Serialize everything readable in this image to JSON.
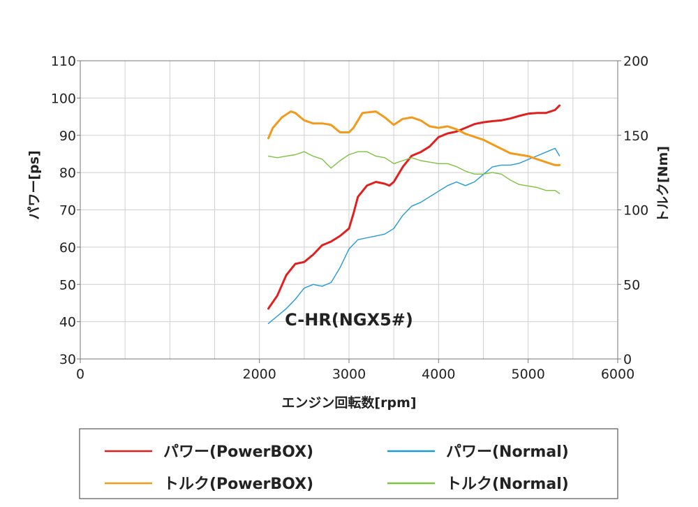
{
  "chart_data": {
    "type": "line",
    "annotation": "C-HR(NGX5#)",
    "xlabel": "エンジン回転数[rpm]",
    "ylabel_left": "パワー[ps]",
    "ylabel_right": "トルク[Nm]",
    "xlim": [
      0,
      6000
    ],
    "ylim_left": [
      30,
      110
    ],
    "ylim_right": [
      0,
      200
    ],
    "x_ticks": [
      "0",
      "2000",
      "3000",
      "4000",
      "5000",
      "6000"
    ],
    "x_tick_values": [
      0,
      2000,
      3000,
      4000,
      5000,
      6000
    ],
    "y_ticks_left": [
      "30",
      "40",
      "50",
      "60",
      "70",
      "80",
      "90",
      "100",
      "110"
    ],
    "y_ticks_left_values": [
      30,
      40,
      50,
      60,
      70,
      80,
      90,
      100,
      110
    ],
    "y_ticks_right": [
      "0",
      "50",
      "100",
      "150",
      "200"
    ],
    "y_ticks_right_values": [
      0,
      50,
      100,
      150,
      200
    ],
    "grid": true,
    "legend_position": "bottom",
    "legend_order": [
      0,
      2,
      1,
      3
    ],
    "series": [
      {
        "name": "パワー(PowerBOX)",
        "axis": "left",
        "color": "#e0201e",
        "width": 3,
        "x": [
          2100,
          2200,
          2300,
          2400,
          2500,
          2600,
          2700,
          2800,
          2900,
          3000,
          3050,
          3100,
          3200,
          3300,
          3400,
          3450,
          3500,
          3600,
          3700,
          3800,
          3900,
          4000,
          4100,
          4200,
          4300,
          4400,
          4500,
          4600,
          4700,
          4800,
          4900,
          5000,
          5100,
          5200,
          5300,
          5350
        ],
        "y": [
          43.5,
          47,
          52.5,
          55.5,
          56,
          58,
          60.5,
          61.5,
          63,
          65,
          69,
          73.5,
          76.5,
          77.5,
          77,
          76.5,
          77.5,
          81.5,
          84.5,
          85.5,
          87,
          89.5,
          90.5,
          91,
          92,
          93,
          93.5,
          93.8,
          94,
          94.5,
          95.2,
          95.8,
          96,
          96,
          96.8,
          98
        ]
      },
      {
        "name": "パワー(Normal)",
        "axis": "left",
        "color": "#1f9ad6",
        "width": 1.4,
        "x": [
          2100,
          2200,
          2300,
          2400,
          2500,
          2600,
          2700,
          2800,
          2900,
          3000,
          3100,
          3200,
          3300,
          3400,
          3500,
          3600,
          3700,
          3800,
          3900,
          4000,
          4100,
          4200,
          4300,
          4400,
          4500,
          4600,
          4700,
          4800,
          4900,
          5000,
          5100,
          5200,
          5300,
          5350
        ],
        "y": [
          39.5,
          41.5,
          43.5,
          46,
          49,
          50,
          49.5,
          50.5,
          54.5,
          59.5,
          62,
          62.5,
          63,
          63.5,
          65,
          68.5,
          71,
          72,
          73.5,
          75,
          76.5,
          77.5,
          76.5,
          77.5,
          79.5,
          81.5,
          82,
          82,
          82.5,
          83.5,
          84.5,
          85.5,
          86.5,
          84.5
        ]
      },
      {
        "name": "トルク(PowerBOX)",
        "axis": "right",
        "color": "#f39a1c",
        "width": 3,
        "x": [
          2100,
          2150,
          2250,
          2350,
          2400,
          2500,
          2600,
          2700,
          2800,
          2900,
          3000,
          3050,
          3150,
          3300,
          3400,
          3500,
          3600,
          3700,
          3800,
          3900,
          4000,
          4100,
          4200,
          4300,
          4400,
          4500,
          4600,
          4700,
          4800,
          4900,
          5000,
          5100,
          5200,
          5300,
          5350
        ],
        "y": [
          148,
          155,
          162,
          166,
          165,
          160,
          158,
          158,
          157,
          152,
          152,
          155,
          165,
          166,
          162,
          157,
          161,
          162,
          160,
          156,
          155,
          156,
          154,
          151,
          149,
          147,
          144,
          141,
          138,
          137,
          136,
          134,
          132,
          130,
          130
        ]
      },
      {
        "name": "トルク(Normal)",
        "axis": "right",
        "color": "#7fc241",
        "width": 1.4,
        "x": [
          2100,
          2200,
          2300,
          2400,
          2500,
          2600,
          2700,
          2800,
          2900,
          3000,
          3100,
          3200,
          3300,
          3400,
          3500,
          3600,
          3700,
          3800,
          3900,
          4000,
          4100,
          4200,
          4300,
          4400,
          4500,
          4600,
          4700,
          4800,
          4900,
          5000,
          5100,
          5200,
          5300,
          5350
        ],
        "y": [
          136,
          135,
          136,
          137,
          139,
          136,
          134,
          128,
          133,
          137,
          139,
          139,
          136,
          135,
          131,
          133,
          135,
          133,
          132,
          131,
          131,
          129,
          126,
          124,
          124,
          125,
          124,
          120,
          117,
          116,
          115,
          113,
          113,
          111
        ]
      }
    ]
  }
}
